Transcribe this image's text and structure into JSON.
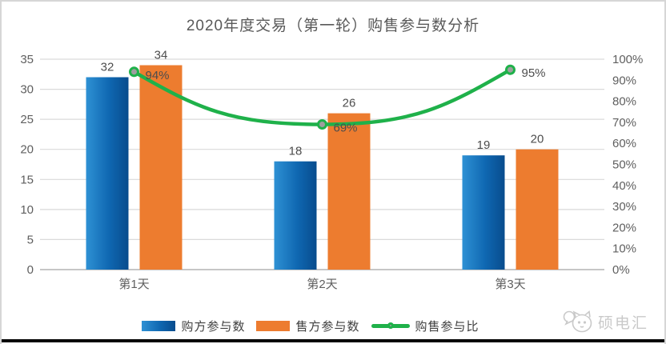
{
  "chart_data": {
    "type": "bar",
    "subtype": "combo-bar-line",
    "title": "2020年度交易（第一轮）购售参与数分析",
    "categories": [
      "第1天",
      "第2天",
      "第3天"
    ],
    "series": [
      {
        "name": "购方参与数",
        "type": "bar",
        "axis": "left",
        "values": [
          32,
          18,
          19
        ],
        "gradient": {
          "from": "#2E91D4",
          "mid": "#0F67B1",
          "to": "#084C8D"
        }
      },
      {
        "name": "售方参与数",
        "type": "bar",
        "axis": "left",
        "values": [
          34,
          26,
          20
        ],
        "color": "#ED7C2F"
      },
      {
        "name": "购售参与比",
        "type": "line",
        "axis": "right",
        "values": [
          94,
          69,
          95
        ],
        "labels": [
          "94%",
          "69%",
          "95%"
        ],
        "color": "#1FB14A",
        "marker_fill": "#9E9E9E"
      }
    ],
    "left_axis": {
      "min": 0,
      "max": 35,
      "step": 5,
      "tick_values": [
        0,
        5,
        10,
        15,
        20,
        25,
        30,
        35
      ],
      "tick_labels": [
        "0",
        "5",
        "10",
        "15",
        "20",
        "25",
        "30",
        "35"
      ]
    },
    "right_axis": {
      "min": 0,
      "max": 100,
      "step": 10,
      "tick_values": [
        0,
        10,
        20,
        30,
        40,
        50,
        60,
        70,
        80,
        90,
        100
      ],
      "tick_labels": [
        "0%",
        "10%",
        "20%",
        "30%",
        "40%",
        "50%",
        "60%",
        "70%",
        "80%",
        "90%",
        "100%"
      ]
    },
    "grid": true,
    "legend_position": "bottom",
    "colors": {
      "grid_line": "#DADADA",
      "baseline": "#B3B3B3",
      "axis_text": "#5F5F5F",
      "data_label_text": "#4D4D4D"
    }
  },
  "watermark": {
    "text": "硕电汇"
  }
}
